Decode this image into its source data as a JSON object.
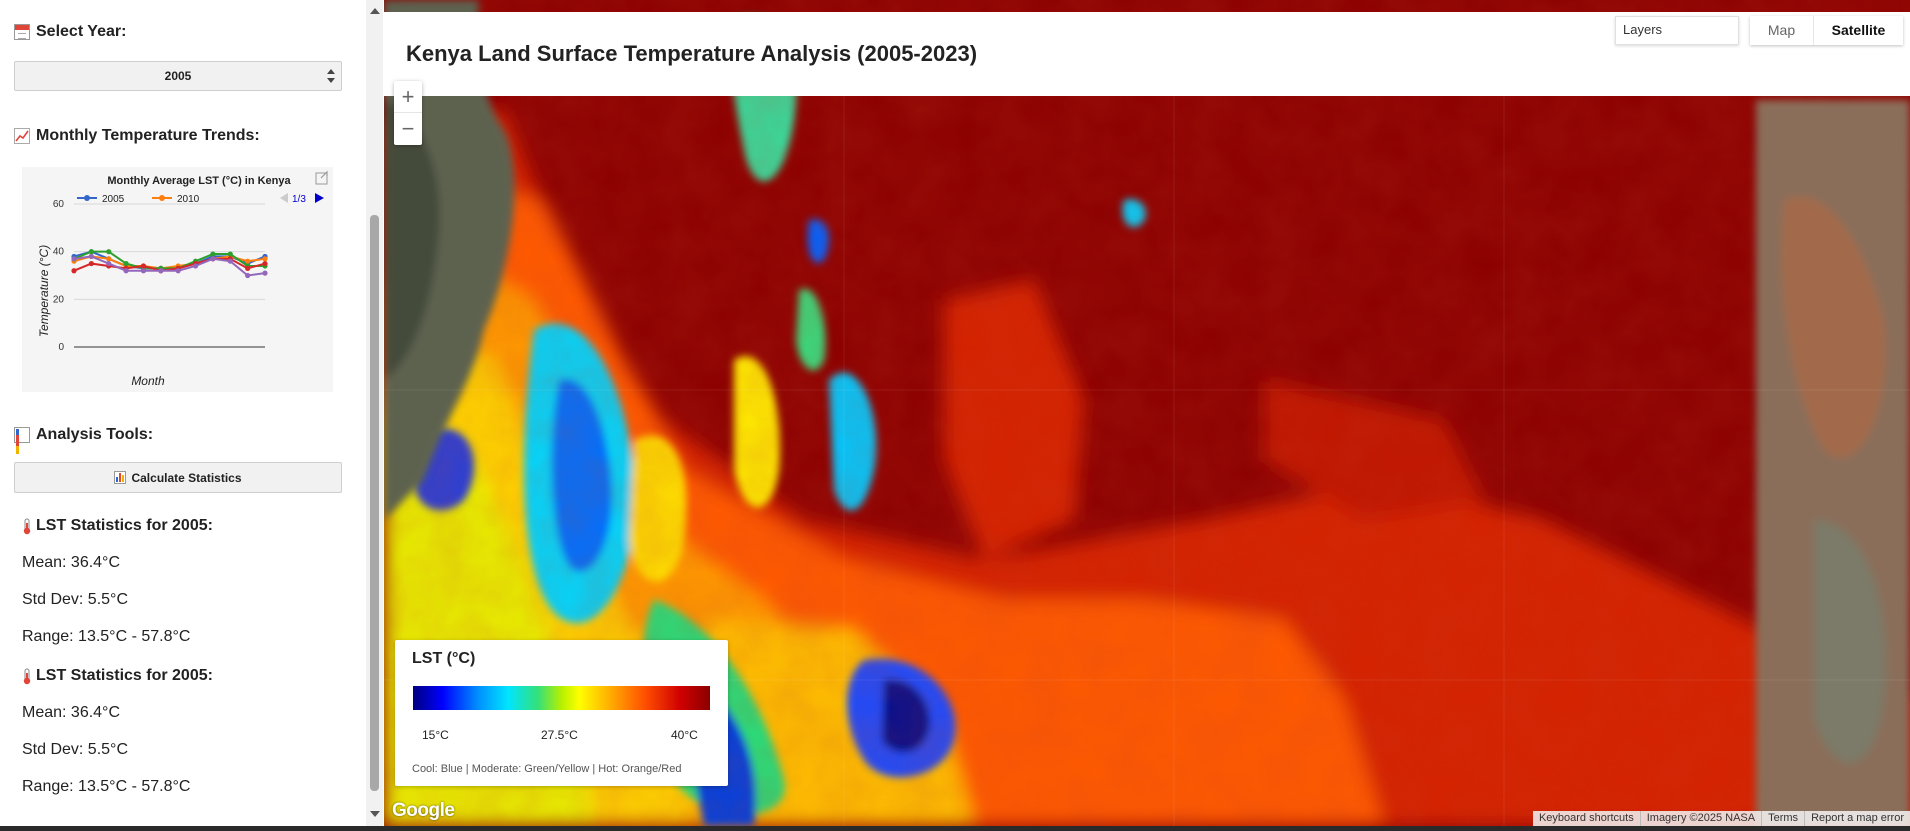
{
  "sidebar": {
    "select_year_label": "Select Year:",
    "selected_year": "2005",
    "trends_label": "Monthly Temperature Trends:",
    "tools_label": "Analysis Tools:",
    "calculate_button": "Calculate Statistics",
    "stats_blocks": [
      {
        "title": "LST Statistics for 2005:",
        "mean": "Mean: 36.4°C",
        "std": "Std Dev: 5.5°C",
        "range": "Range: 13.5°C - 57.8°C"
      },
      {
        "title": "LST Statistics for 2005:",
        "mean": "Mean: 36.4°C",
        "std": "Std Dev: 5.5°C",
        "range": "Range: 13.5°C - 57.8°C"
      }
    ]
  },
  "chart_data": {
    "type": "line",
    "title": "Monthly Average LST (°C) in Kenya",
    "xlabel": "Month",
    "ylabel": "Temperature (°C)",
    "ylim": [
      0,
      60
    ],
    "yticks": [
      0,
      20,
      40,
      60
    ],
    "x": [
      1,
      2,
      3,
      4,
      5,
      6,
      7,
      8,
      9,
      10,
      11,
      12
    ],
    "legend_page": "1/3",
    "legend_visible": [
      "2005",
      "2010"
    ],
    "series": [
      {
        "name": "2005",
        "color": "#3366cc",
        "values": [
          38,
          40,
          37,
          34,
          33,
          33,
          33,
          35,
          38,
          38,
          35,
          38
        ]
      },
      {
        "name": "2010",
        "color": "#ff7f0e",
        "values": [
          36,
          38,
          37,
          34,
          34,
          33,
          34,
          35,
          37,
          38,
          36,
          37
        ]
      },
      {
        "name": "",
        "color": "#2ca02c",
        "values": [
          37,
          40,
          40,
          35,
          33,
          33,
          33,
          36,
          39,
          39,
          34,
          34
        ]
      },
      {
        "name": "",
        "color": "#d62728",
        "values": [
          32,
          35,
          34,
          33,
          34,
          32,
          33,
          35,
          37,
          37,
          33,
          35
        ]
      },
      {
        "name": "",
        "color": "#9467bd",
        "values": [
          37,
          38,
          35,
          32,
          32,
          32,
          32,
          34,
          37,
          36,
          30,
          31
        ]
      }
    ]
  },
  "map": {
    "title": "Kenya Land Surface Temperature Analysis (2005-2023)",
    "layers_label": "Layers",
    "map_type_map": "Map",
    "map_type_satellite": "Satellite",
    "zoom_in": "+",
    "zoom_out": "−",
    "google_logo": "Google",
    "attribution": {
      "shortcuts": "Keyboard shortcuts",
      "imagery": "Imagery ©2025 NASA",
      "terms": "Terms",
      "report": "Report a map error"
    }
  },
  "legend": {
    "title": "LST (°C)",
    "min_label": "15°C",
    "mid_label": "27.5°C",
    "max_label": "40°C",
    "note": "Cool: Blue | Moderate: Green/Yellow | Hot: Orange/Red"
  }
}
